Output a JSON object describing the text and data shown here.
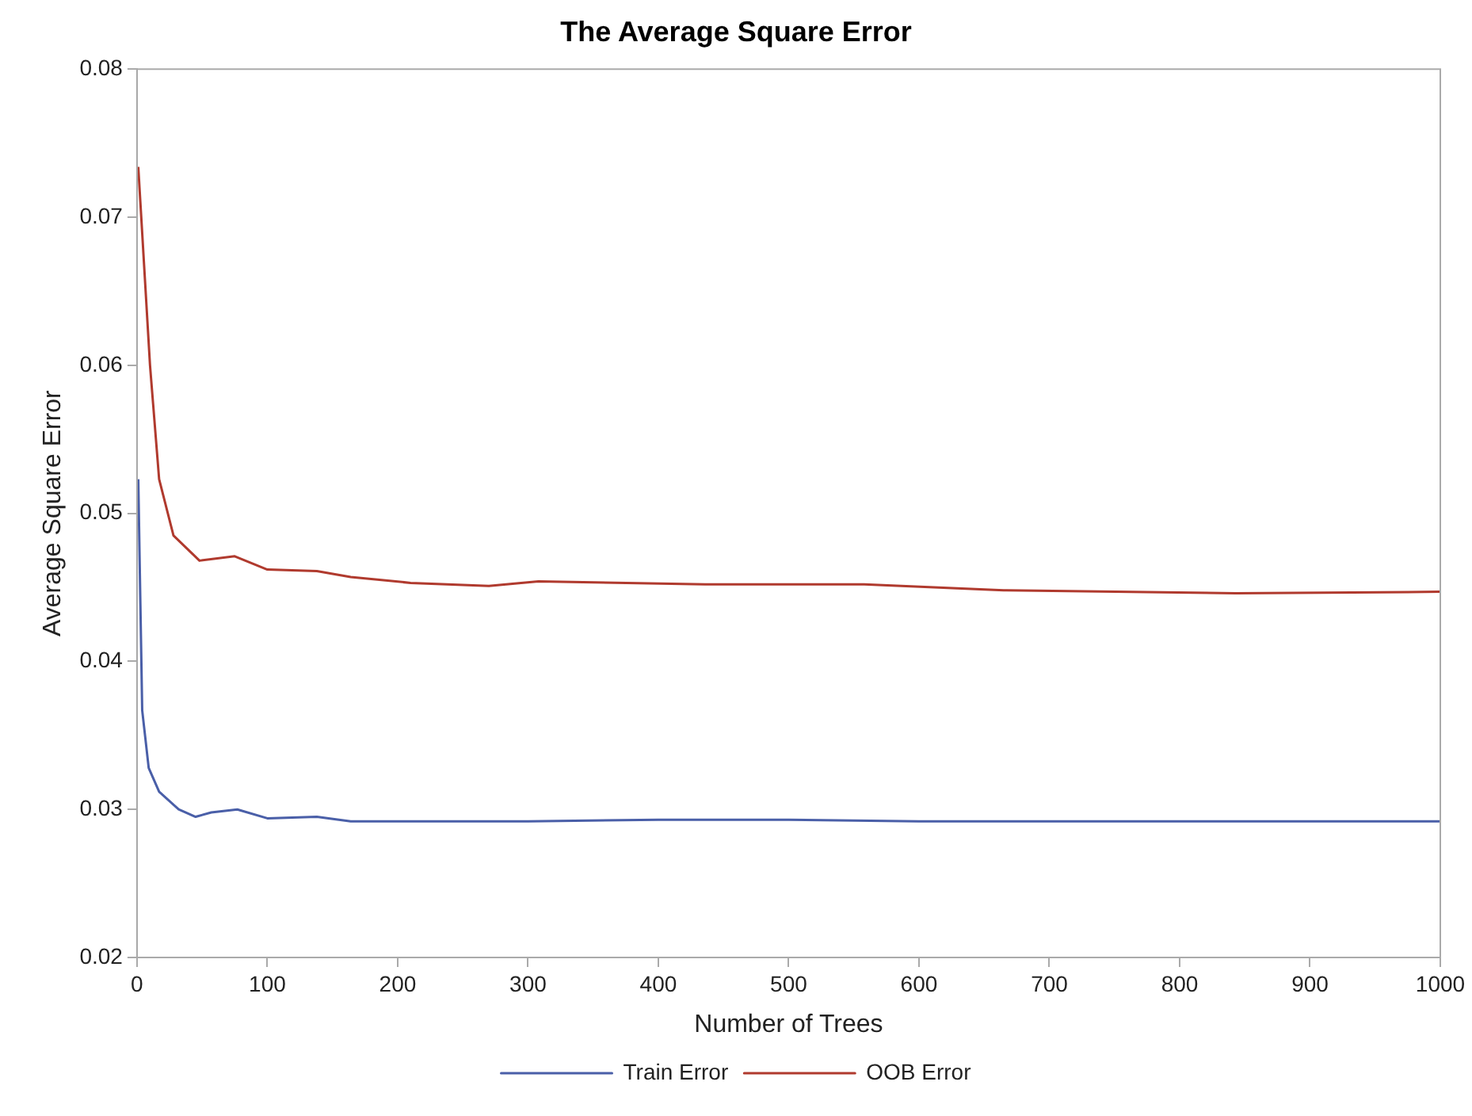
{
  "chart_data": {
    "type": "line",
    "title": "The Average Square Error",
    "xlabel": "Number of Trees",
    "ylabel": "Average Square Error",
    "xlim": [
      0,
      1000
    ],
    "xticks": [
      0,
      100,
      200,
      300,
      400,
      500,
      600,
      700,
      800,
      900,
      1000
    ],
    "ylim": [
      0.02,
      0.08
    ],
    "yticks": [
      {
        "value": 0.02,
        "label": "0.02"
      },
      {
        "value": 0.03,
        "label": "0.03"
      },
      {
        "value": 0.04,
        "label": "0.04"
      },
      {
        "value": 0.05,
        "label": "0.05"
      },
      {
        "value": 0.06,
        "label": "0.06"
      },
      {
        "value": 0.07,
        "label": "0.07"
      },
      {
        "value": 0.08,
        "label": "0.08"
      }
    ],
    "grid": false,
    "legend": "bottom",
    "marker": "none",
    "line_style": "solid",
    "series": [
      {
        "name": "Train Error",
        "color": "#4a5fa8",
        "x": [
          1,
          4,
          9,
          17,
          32,
          45,
          57,
          77,
          100,
          138,
          164,
          210,
          300,
          400,
          500,
          600,
          700,
          800,
          900,
          1000
        ],
        "values": [
          0.0523,
          0.0367,
          0.0328,
          0.0312,
          0.03,
          0.0295,
          0.0298,
          0.03,
          0.0294,
          0.0295,
          0.0292,
          0.0292,
          0.0292,
          0.0293,
          0.0293,
          0.0292,
          0.0292,
          0.0292,
          0.0292,
          0.0292
        ]
      },
      {
        "name": "OOB Error",
        "color": "#b03a2e",
        "x": [
          1,
          10,
          17,
          28,
          48,
          75,
          100,
          138,
          164,
          210,
          270,
          308,
          436,
          558,
          665,
          843,
          1000
        ],
        "values": [
          0.0734,
          0.06,
          0.0523,
          0.0485,
          0.0468,
          0.0471,
          0.0462,
          0.0461,
          0.0457,
          0.0453,
          0.0451,
          0.0454,
          0.0452,
          0.0452,
          0.0448,
          0.0446,
          0.0447
        ]
      }
    ]
  }
}
